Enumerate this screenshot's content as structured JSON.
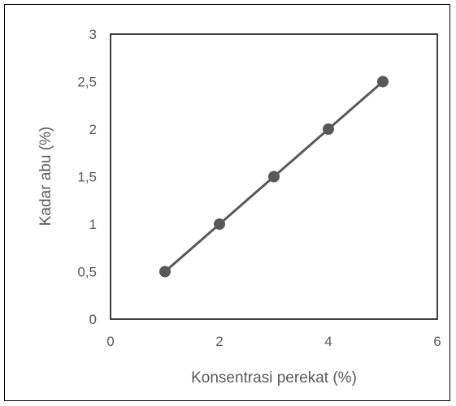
{
  "chart_data": {
    "type": "line",
    "title": "",
    "xlabel": "Konsentrasi perekat (%)",
    "ylabel": "Kadar abu (%)",
    "xlim": [
      0,
      6
    ],
    "ylim": [
      0,
      3
    ],
    "x_ticks": [
      "0",
      "2",
      "4",
      "6"
    ],
    "y_ticks": [
      "0",
      "0,5",
      "1",
      "1,5",
      "2",
      "2,5",
      "3"
    ],
    "grid": false,
    "legend": "none",
    "series": [
      {
        "x": [
          1,
          2,
          3,
          4,
          5
        ],
        "y": [
          0.5,
          1,
          1.5,
          2,
          2.5
        ],
        "color": "#595959",
        "marker": "circle"
      }
    ]
  }
}
